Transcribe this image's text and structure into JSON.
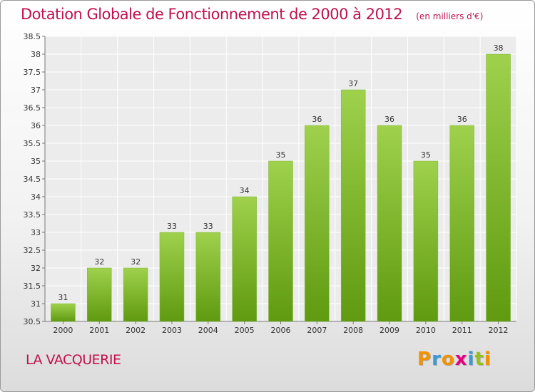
{
  "header": {
    "title": "Dotation Globale de Fonctionnement de 2000 à 2012",
    "unit": "(en milliers d'€)"
  },
  "commune": "LA VACQUERIE",
  "logo": {
    "text": "Proxiti",
    "letters": [
      {
        "char": "P",
        "color": "#f39200"
      },
      {
        "char": "r",
        "color": "#3a9ad9"
      },
      {
        "char": "o",
        "color": "#f39200"
      },
      {
        "char": "x",
        "color": "#e6007e"
      },
      {
        "char": "i",
        "color": "#3a9ad9"
      },
      {
        "char": "t",
        "color": "#95c11f"
      },
      {
        "char": "i",
        "color": "#f39200"
      }
    ]
  },
  "colors": {
    "bar_top": "#9fd14c",
    "bar_bottom": "#5f9a10",
    "accent": "#c0114e"
  },
  "chart_data": {
    "type": "bar",
    "title": "Dotation Globale de Fonctionnement de 2000 à 2012",
    "subtitle": "(en milliers d'€)",
    "categories": [
      "2000",
      "2001",
      "2002",
      "2003",
      "2004",
      "2005",
      "2006",
      "2007",
      "2008",
      "2009",
      "2010",
      "2011",
      "2012"
    ],
    "values": [
      31,
      32,
      32,
      33,
      33,
      34,
      35,
      36,
      37,
      36,
      35,
      36,
      38
    ],
    "value_labels": [
      "31",
      "32",
      "32",
      "33",
      "33",
      "34",
      "35",
      "36",
      "37",
      "36",
      "35",
      "36",
      "38"
    ],
    "ylim": [
      30.5,
      38.5
    ],
    "yticks": [
      30.5,
      31,
      31.5,
      32,
      32.5,
      33,
      33.5,
      34,
      34.5,
      35,
      35.5,
      36,
      36.5,
      37,
      37.5,
      38,
      38.5
    ],
    "ytick_labels": [
      "30.5",
      "31",
      "31.5",
      "32",
      "32.5",
      "33",
      "33.5",
      "34",
      "34.5",
      "35",
      "35.5",
      "36",
      "36.5",
      "37",
      "37.5",
      "38",
      "38.5"
    ],
    "grid": true,
    "legend": "none"
  }
}
